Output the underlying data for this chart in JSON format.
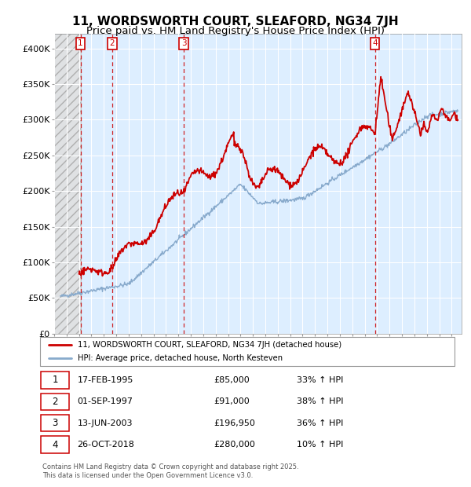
{
  "title": "11, WORDSWORTH COURT, SLEAFORD, NG34 7JH",
  "subtitle": "Price paid vs. HM Land Registry's House Price Index (HPI)",
  "ylim": [
    0,
    420000
  ],
  "yticks": [
    0,
    50000,
    100000,
    150000,
    200000,
    250000,
    300000,
    350000,
    400000
  ],
  "ytick_labels": [
    "£0",
    "£50K",
    "£100K",
    "£150K",
    "£200K",
    "£250K",
    "£300K",
    "£350K",
    "£400K"
  ],
  "xlim_start": 1993.0,
  "xlim_end": 2025.8,
  "purchases": [
    {
      "num": 1,
      "date": "17-FEB-1995",
      "year": 1995.12,
      "price": 85000,
      "pct": "33%",
      "dir": "↑"
    },
    {
      "num": 2,
      "date": "01-SEP-1997",
      "year": 1997.67,
      "price": 91000,
      "pct": "38%",
      "dir": "↑"
    },
    {
      "num": 3,
      "date": "13-JUN-2003",
      "year": 2003.45,
      "price": 196950,
      "pct": "36%",
      "dir": "↑"
    },
    {
      "num": 4,
      "date": "26-OCT-2018",
      "year": 2018.82,
      "price": 280000,
      "pct": "10%",
      "dir": "↑"
    }
  ],
  "legend_property": "11, WORDSWORTH COURT, SLEAFORD, NG34 7JH (detached house)",
  "legend_hpi": "HPI: Average price, detached house, North Kesteven",
  "property_color": "#cc0000",
  "hpi_color": "#88aacc",
  "hatch_end_year": 1995.12,
  "footer_line1": "Contains HM Land Registry data © Crown copyright and database right 2025.",
  "footer_line2": "This data is licensed under the Open Government Licence v3.0.",
  "background_color": "#ddeeff",
  "title_fontsize": 11,
  "subtitle_fontsize": 9.5
}
